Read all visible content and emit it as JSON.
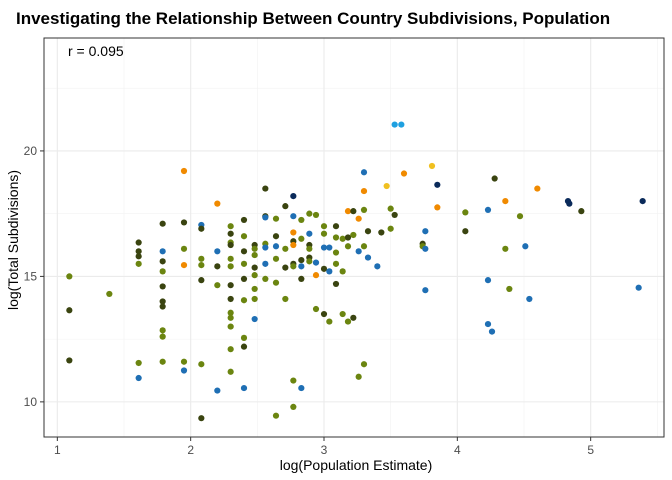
{
  "chart_data": {
    "type": "scatter",
    "title": "Investigating the Relationship Between Country Subdivisions, Population",
    "xlabel": "log(Population Estimate)",
    "ylabel": "log(Total Subdivisions)",
    "annotation": "r = 0.095",
    "xlim": [
      0.9,
      5.55
    ],
    "ylim": [
      8.6,
      24.5
    ],
    "x_ticks": [
      1,
      2,
      3,
      4,
      5
    ],
    "y_ticks": [
      10,
      15,
      20
    ],
    "x_tick_labels": [
      "1",
      "2",
      "3",
      "4",
      "5"
    ],
    "y_tick_labels": [
      "10",
      "15",
      "20"
    ],
    "grid": true,
    "legend": "none",
    "colors": {
      "dark_olive": "#3a4410",
      "olive": "#6b8510",
      "blue": "#1f6fb4",
      "orange": "#f08a00",
      "light_blue": "#1fa0e0",
      "yellow": "#f0c020",
      "navy": "#0a2a5a"
    },
    "points": [
      {
        "x": 1.09,
        "y": 15.0,
        "c": "olive"
      },
      {
        "x": 1.09,
        "y": 13.65,
        "c": "dark_olive"
      },
      {
        "x": 1.09,
        "y": 11.65,
        "c": "dark_olive"
      },
      {
        "x": 1.39,
        "y": 14.3,
        "c": "olive"
      },
      {
        "x": 1.61,
        "y": 16.35,
        "c": "dark_olive"
      },
      {
        "x": 1.61,
        "y": 16.0,
        "c": "dark_olive"
      },
      {
        "x": 1.61,
        "y": 15.8,
        "c": "dark_olive"
      },
      {
        "x": 1.61,
        "y": 15.5,
        "c": "olive"
      },
      {
        "x": 1.61,
        "y": 11.55,
        "c": "olive"
      },
      {
        "x": 1.61,
        "y": 10.95,
        "c": "blue"
      },
      {
        "x": 1.79,
        "y": 17.1,
        "c": "dark_olive"
      },
      {
        "x": 1.79,
        "y": 16.0,
        "c": "blue"
      },
      {
        "x": 1.79,
        "y": 15.6,
        "c": "dark_olive"
      },
      {
        "x": 1.79,
        "y": 15.2,
        "c": "olive"
      },
      {
        "x": 1.79,
        "y": 14.6,
        "c": "dark_olive"
      },
      {
        "x": 1.79,
        "y": 14.0,
        "c": "dark_olive"
      },
      {
        "x": 1.79,
        "y": 13.8,
        "c": "dark_olive"
      },
      {
        "x": 1.79,
        "y": 12.85,
        "c": "olive"
      },
      {
        "x": 1.79,
        "y": 12.6,
        "c": "olive"
      },
      {
        "x": 1.79,
        "y": 11.6,
        "c": "olive"
      },
      {
        "x": 1.95,
        "y": 19.2,
        "c": "orange"
      },
      {
        "x": 1.95,
        "y": 17.15,
        "c": "dark_olive"
      },
      {
        "x": 1.95,
        "y": 16.1,
        "c": "olive"
      },
      {
        "x": 1.95,
        "y": 15.45,
        "c": "orange"
      },
      {
        "x": 1.95,
        "y": 11.6,
        "c": "olive"
      },
      {
        "x": 1.95,
        "y": 11.25,
        "c": "blue"
      },
      {
        "x": 2.08,
        "y": 17.05,
        "c": "blue"
      },
      {
        "x": 2.08,
        "y": 16.9,
        "c": "dark_olive"
      },
      {
        "x": 2.08,
        "y": 15.7,
        "c": "olive"
      },
      {
        "x": 2.08,
        "y": 15.45,
        "c": "olive"
      },
      {
        "x": 2.08,
        "y": 14.85,
        "c": "dark_olive"
      },
      {
        "x": 2.08,
        "y": 11.5,
        "c": "olive"
      },
      {
        "x": 2.08,
        "y": 9.35,
        "c": "dark_olive"
      },
      {
        "x": 2.2,
        "y": 17.9,
        "c": "orange"
      },
      {
        "x": 2.2,
        "y": 16.0,
        "c": "blue"
      },
      {
        "x": 2.2,
        "y": 15.4,
        "c": "dark_olive"
      },
      {
        "x": 2.2,
        "y": 14.65,
        "c": "olive"
      },
      {
        "x": 2.2,
        "y": 10.45,
        "c": "blue"
      },
      {
        "x": 2.3,
        "y": 17.0,
        "c": "olive"
      },
      {
        "x": 2.3,
        "y": 16.7,
        "c": "dark_olive"
      },
      {
        "x": 2.3,
        "y": 16.35,
        "c": "olive"
      },
      {
        "x": 2.3,
        "y": 16.25,
        "c": "dark_olive"
      },
      {
        "x": 2.3,
        "y": 15.7,
        "c": "olive"
      },
      {
        "x": 2.3,
        "y": 15.4,
        "c": "olive"
      },
      {
        "x": 2.3,
        "y": 14.65,
        "c": "dark_olive"
      },
      {
        "x": 2.3,
        "y": 14.1,
        "c": "dark_olive"
      },
      {
        "x": 2.3,
        "y": 13.55,
        "c": "olive"
      },
      {
        "x": 2.3,
        "y": 13.35,
        "c": "olive"
      },
      {
        "x": 2.3,
        "y": 13.0,
        "c": "olive"
      },
      {
        "x": 2.3,
        "y": 12.1,
        "c": "olive"
      },
      {
        "x": 2.3,
        "y": 11.2,
        "c": "olive"
      },
      {
        "x": 2.4,
        "y": 17.25,
        "c": "dark_olive"
      },
      {
        "x": 2.4,
        "y": 16.6,
        "c": "olive"
      },
      {
        "x": 2.4,
        "y": 16.0,
        "c": "dark_olive"
      },
      {
        "x": 2.4,
        "y": 15.5,
        "c": "olive"
      },
      {
        "x": 2.4,
        "y": 14.9,
        "c": "dark_olive"
      },
      {
        "x": 2.4,
        "y": 14.05,
        "c": "olive"
      },
      {
        "x": 2.4,
        "y": 12.55,
        "c": "olive"
      },
      {
        "x": 2.4,
        "y": 12.2,
        "c": "dark_olive"
      },
      {
        "x": 2.4,
        "y": 10.55,
        "c": "blue"
      },
      {
        "x": 2.48,
        "y": 16.25,
        "c": "dark_olive"
      },
      {
        "x": 2.48,
        "y": 16.1,
        "c": "olive"
      },
      {
        "x": 2.48,
        "y": 15.85,
        "c": "olive"
      },
      {
        "x": 2.48,
        "y": 15.35,
        "c": "dark_olive"
      },
      {
        "x": 2.48,
        "y": 15.05,
        "c": "olive"
      },
      {
        "x": 2.48,
        "y": 14.5,
        "c": "olive"
      },
      {
        "x": 2.48,
        "y": 14.1,
        "c": "olive"
      },
      {
        "x": 2.48,
        "y": 13.3,
        "c": "blue"
      },
      {
        "x": 2.56,
        "y": 18.5,
        "c": "dark_olive"
      },
      {
        "x": 2.56,
        "y": 17.4,
        "c": "dark_olive"
      },
      {
        "x": 2.56,
        "y": 17.35,
        "c": "blue"
      },
      {
        "x": 2.56,
        "y": 16.3,
        "c": "olive"
      },
      {
        "x": 2.56,
        "y": 16.15,
        "c": "blue"
      },
      {
        "x": 2.56,
        "y": 15.5,
        "c": "blue"
      },
      {
        "x": 2.56,
        "y": 14.9,
        "c": "olive"
      },
      {
        "x": 2.64,
        "y": 17.3,
        "c": "olive"
      },
      {
        "x": 2.64,
        "y": 16.6,
        "c": "dark_olive"
      },
      {
        "x": 2.64,
        "y": 16.2,
        "c": "blue"
      },
      {
        "x": 2.64,
        "y": 15.7,
        "c": "olive"
      },
      {
        "x": 2.64,
        "y": 14.75,
        "c": "olive"
      },
      {
        "x": 2.64,
        "y": 9.45,
        "c": "olive"
      },
      {
        "x": 2.71,
        "y": 17.8,
        "c": "dark_olive"
      },
      {
        "x": 2.71,
        "y": 16.1,
        "c": "olive"
      },
      {
        "x": 2.71,
        "y": 15.35,
        "c": "dark_olive"
      },
      {
        "x": 2.71,
        "y": 14.1,
        "c": "olive"
      },
      {
        "x": 2.77,
        "y": 18.2,
        "c": "navy"
      },
      {
        "x": 2.77,
        "y": 17.4,
        "c": "blue"
      },
      {
        "x": 2.77,
        "y": 16.75,
        "c": "orange"
      },
      {
        "x": 2.77,
        "y": 16.4,
        "c": "dark_olive"
      },
      {
        "x": 2.77,
        "y": 16.25,
        "c": "orange"
      },
      {
        "x": 2.77,
        "y": 15.5,
        "c": "dark_olive"
      },
      {
        "x": 2.77,
        "y": 15.4,
        "c": "olive"
      },
      {
        "x": 2.77,
        "y": 10.85,
        "c": "olive"
      },
      {
        "x": 2.77,
        "y": 9.8,
        "c": "olive"
      },
      {
        "x": 2.83,
        "y": 17.25,
        "c": "olive"
      },
      {
        "x": 2.83,
        "y": 16.5,
        "c": "olive"
      },
      {
        "x": 2.83,
        "y": 15.65,
        "c": "dark_olive"
      },
      {
        "x": 2.83,
        "y": 15.4,
        "c": "blue"
      },
      {
        "x": 2.83,
        "y": 14.9,
        "c": "dark_olive"
      },
      {
        "x": 2.83,
        "y": 10.55,
        "c": "blue"
      },
      {
        "x": 2.89,
        "y": 17.5,
        "c": "olive"
      },
      {
        "x": 2.89,
        "y": 16.7,
        "c": "blue"
      },
      {
        "x": 2.89,
        "y": 16.25,
        "c": "dark_olive"
      },
      {
        "x": 2.89,
        "y": 16.1,
        "c": "olive"
      },
      {
        "x": 2.89,
        "y": 15.75,
        "c": "dark_olive"
      },
      {
        "x": 2.89,
        "y": 15.6,
        "c": "olive"
      },
      {
        "x": 2.94,
        "y": 17.45,
        "c": "olive"
      },
      {
        "x": 2.94,
        "y": 15.55,
        "c": "blue"
      },
      {
        "x": 2.94,
        "y": 15.05,
        "c": "orange"
      },
      {
        "x": 2.94,
        "y": 13.7,
        "c": "olive"
      },
      {
        "x": 3.0,
        "y": 17.0,
        "c": "olive"
      },
      {
        "x": 3.0,
        "y": 16.7,
        "c": "olive"
      },
      {
        "x": 3.0,
        "y": 16.15,
        "c": "blue"
      },
      {
        "x": 3.0,
        "y": 15.3,
        "c": "dark_olive"
      },
      {
        "x": 3.0,
        "y": 13.5,
        "c": "dark_olive"
      },
      {
        "x": 3.04,
        "y": 16.15,
        "c": "blue"
      },
      {
        "x": 3.04,
        "y": 15.2,
        "c": "blue"
      },
      {
        "x": 3.04,
        "y": 13.2,
        "c": "olive"
      },
      {
        "x": 3.09,
        "y": 17.0,
        "c": "dark_olive"
      },
      {
        "x": 3.09,
        "y": 16.55,
        "c": "olive"
      },
      {
        "x": 3.09,
        "y": 15.95,
        "c": "olive"
      },
      {
        "x": 3.09,
        "y": 15.5,
        "c": "olive"
      },
      {
        "x": 3.09,
        "y": 14.7,
        "c": "dark_olive"
      },
      {
        "x": 3.14,
        "y": 16.5,
        "c": "olive"
      },
      {
        "x": 3.14,
        "y": 15.2,
        "c": "olive"
      },
      {
        "x": 3.14,
        "y": 13.5,
        "c": "olive"
      },
      {
        "x": 3.18,
        "y": 17.6,
        "c": "orange"
      },
      {
        "x": 3.18,
        "y": 16.55,
        "c": "dark_olive"
      },
      {
        "x": 3.18,
        "y": 16.2,
        "c": "olive"
      },
      {
        "x": 3.18,
        "y": 13.2,
        "c": "olive"
      },
      {
        "x": 3.22,
        "y": 17.6,
        "c": "dark_olive"
      },
      {
        "x": 3.22,
        "y": 16.65,
        "c": "olive"
      },
      {
        "x": 3.22,
        "y": 13.35,
        "c": "dark_olive"
      },
      {
        "x": 3.26,
        "y": 17.3,
        "c": "orange"
      },
      {
        "x": 3.26,
        "y": 16.0,
        "c": "blue"
      },
      {
        "x": 3.26,
        "y": 11.0,
        "c": "olive"
      },
      {
        "x": 3.3,
        "y": 19.15,
        "c": "blue"
      },
      {
        "x": 3.3,
        "y": 18.4,
        "c": "orange"
      },
      {
        "x": 3.3,
        "y": 17.65,
        "c": "olive"
      },
      {
        "x": 3.3,
        "y": 16.2,
        "c": "olive"
      },
      {
        "x": 3.3,
        "y": 11.5,
        "c": "olive"
      },
      {
        "x": 3.33,
        "y": 16.8,
        "c": "dark_olive"
      },
      {
        "x": 3.33,
        "y": 15.75,
        "c": "blue"
      },
      {
        "x": 3.4,
        "y": 15.4,
        "c": "blue"
      },
      {
        "x": 3.43,
        "y": 16.75,
        "c": "dark_olive"
      },
      {
        "x": 3.47,
        "y": 18.6,
        "c": "yellow"
      },
      {
        "x": 3.5,
        "y": 17.7,
        "c": "olive"
      },
      {
        "x": 3.5,
        "y": 16.9,
        "c": "olive"
      },
      {
        "x": 3.53,
        "y": 21.05,
        "c": "light_blue"
      },
      {
        "x": 3.53,
        "y": 17.45,
        "c": "dark_olive"
      },
      {
        "x": 3.58,
        "y": 21.05,
        "c": "light_blue"
      },
      {
        "x": 3.6,
        "y": 19.1,
        "c": "orange"
      },
      {
        "x": 3.74,
        "y": 16.3,
        "c": "dark_olive"
      },
      {
        "x": 3.74,
        "y": 16.2,
        "c": "olive"
      },
      {
        "x": 3.76,
        "y": 16.8,
        "c": "blue"
      },
      {
        "x": 3.76,
        "y": 16.1,
        "c": "blue"
      },
      {
        "x": 3.76,
        "y": 14.45,
        "c": "blue"
      },
      {
        "x": 3.81,
        "y": 19.4,
        "c": "yellow"
      },
      {
        "x": 3.85,
        "y": 18.65,
        "c": "navy"
      },
      {
        "x": 3.85,
        "y": 17.75,
        "c": "orange"
      },
      {
        "x": 4.06,
        "y": 17.55,
        "c": "olive"
      },
      {
        "x": 4.06,
        "y": 16.8,
        "c": "dark_olive"
      },
      {
        "x": 4.23,
        "y": 17.65,
        "c": "blue"
      },
      {
        "x": 4.23,
        "y": 14.85,
        "c": "blue"
      },
      {
        "x": 4.23,
        "y": 13.1,
        "c": "blue"
      },
      {
        "x": 4.26,
        "y": 12.8,
        "c": "blue"
      },
      {
        "x": 4.28,
        "y": 18.9,
        "c": "dark_olive"
      },
      {
        "x": 4.36,
        "y": 18.0,
        "c": "orange"
      },
      {
        "x": 4.36,
        "y": 16.1,
        "c": "olive"
      },
      {
        "x": 4.39,
        "y": 14.5,
        "c": "olive"
      },
      {
        "x": 4.47,
        "y": 17.4,
        "c": "olive"
      },
      {
        "x": 4.51,
        "y": 16.2,
        "c": "blue"
      },
      {
        "x": 4.54,
        "y": 14.1,
        "c": "blue"
      },
      {
        "x": 4.6,
        "y": 18.5,
        "c": "orange"
      },
      {
        "x": 4.83,
        "y": 18.0,
        "c": "navy"
      },
      {
        "x": 4.84,
        "y": 17.9,
        "c": "navy"
      },
      {
        "x": 4.93,
        "y": 17.6,
        "c": "dark_olive"
      },
      {
        "x": 5.36,
        "y": 14.55,
        "c": "blue"
      },
      {
        "x": 5.39,
        "y": 18.0,
        "c": "navy"
      }
    ]
  }
}
